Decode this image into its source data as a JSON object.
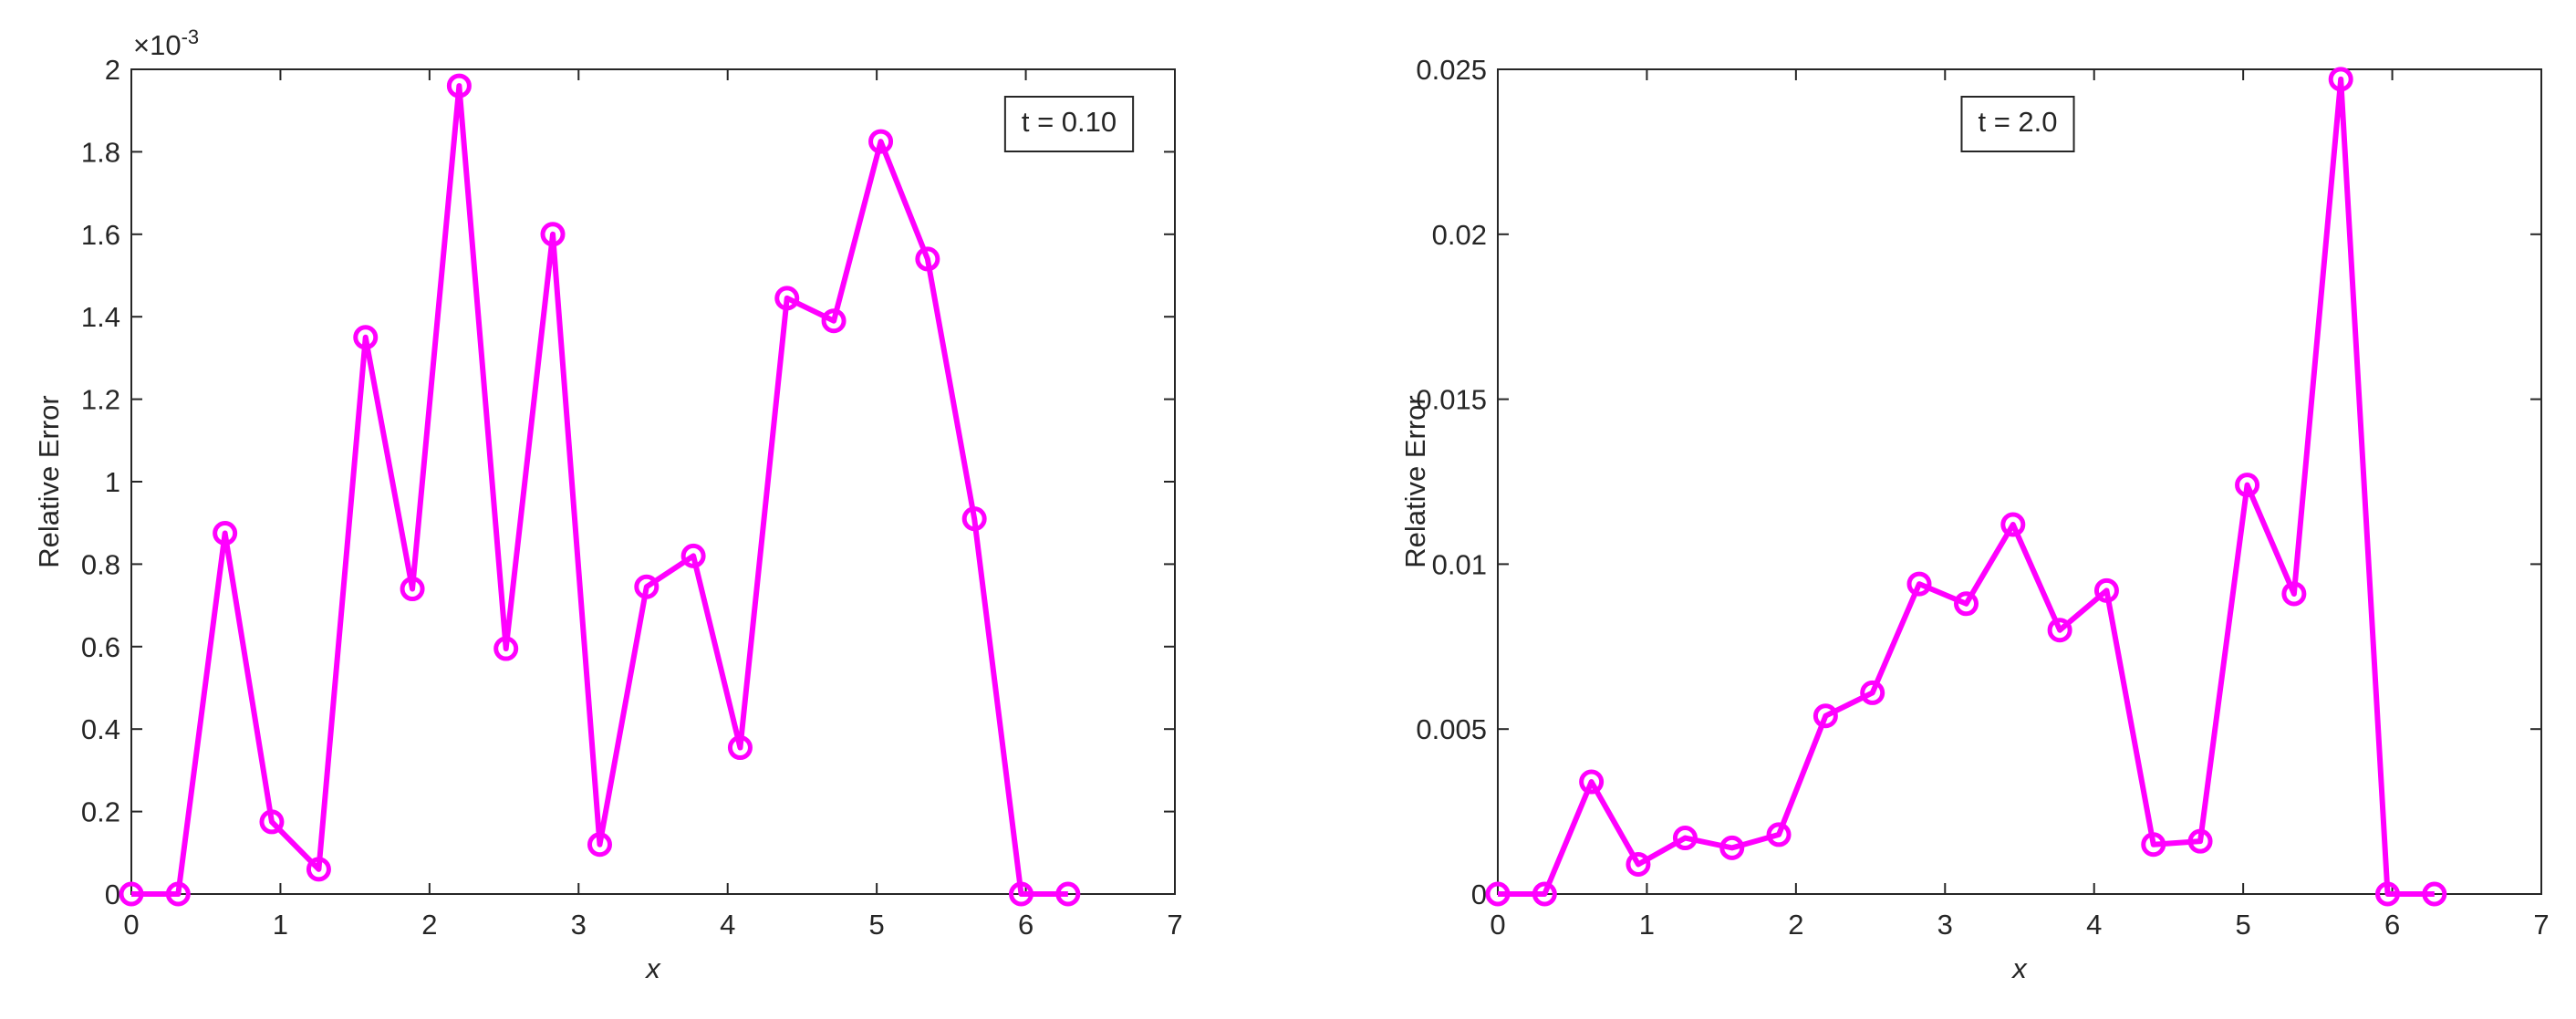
{
  "chart_data": [
    {
      "type": "line",
      "annotation": "t = 0.10",
      "xlabel": "x",
      "ylabel": "Relative Error",
      "y_multiplier_base": "×10",
      "y_multiplier_exponent": "-3",
      "x": [
        0,
        0.314,
        0.628,
        0.942,
        1.257,
        1.571,
        1.885,
        2.199,
        2.513,
        2.827,
        3.142,
        3.456,
        3.77,
        4.084,
        4.398,
        4.712,
        5.027,
        5.341,
        5.655,
        5.969,
        6.283
      ],
      "series": [
        {
          "color": "#ff00ff",
          "values": [
            0,
            0,
            0.875,
            0.175,
            0.06,
            1.35,
            0.74,
            1.96,
            0.595,
            1.6,
            0.12,
            0.745,
            0.82,
            0.355,
            1.445,
            1.39,
            1.825,
            1.54,
            0.91,
            0,
            0
          ]
        }
      ],
      "xlim": [
        0,
        7
      ],
      "xticks": [
        0,
        1,
        2,
        3,
        4,
        5,
        6,
        7
      ],
      "ylim": [
        0,
        2
      ],
      "yticks": [
        0,
        0.2,
        0.4,
        0.6,
        0.8,
        1,
        1.2,
        1.4,
        1.6,
        1.8,
        2
      ],
      "grid": false
    },
    {
      "type": "line",
      "annotation": "t = 2.0",
      "xlabel": "x",
      "ylabel": "Relative Error",
      "x": [
        0,
        0.314,
        0.628,
        0.942,
        1.257,
        1.571,
        1.885,
        2.199,
        2.513,
        2.827,
        3.142,
        3.456,
        3.77,
        4.084,
        4.398,
        4.712,
        5.027,
        5.341,
        5.655,
        5.969,
        6.283
      ],
      "series": [
        {
          "color": "#ff00ff",
          "values": [
            0,
            0,
            0.0034,
            0.0009,
            0.0017,
            0.0014,
            0.0018,
            0.0054,
            0.0061,
            0.0094,
            0.0088,
            0.0112,
            0.008,
            0.0092,
            0.0015,
            0.0016,
            0.0124,
            0.0091,
            0.0247,
            0,
            0
          ]
        }
      ],
      "xlim": [
        0,
        7
      ],
      "xticks": [
        0,
        1,
        2,
        3,
        4,
        5,
        6,
        7
      ],
      "ylim": [
        0,
        0.025
      ],
      "yticks": [
        0,
        0.005,
        0.01,
        0.015,
        0.02,
        0.025
      ],
      "grid": false
    }
  ]
}
